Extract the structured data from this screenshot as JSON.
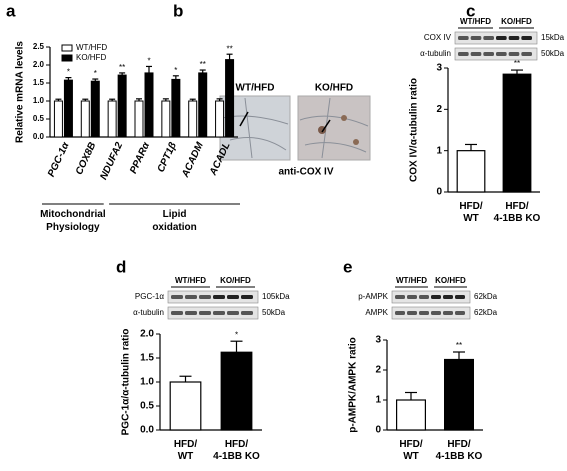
{
  "panel_letters": [
    "a",
    "b",
    "c",
    "d",
    "e"
  ],
  "micrograph": {
    "labels": [
      "WT/HFD",
      "KO/HFD"
    ],
    "caption": "anti-COX IV"
  },
  "chart_data": [
    {
      "type": "bar",
      "ylabel": "Relative mRNA levels",
      "categories": [
        "PGC-1α",
        "COX8B",
        "NDUFA2",
        "PPARα",
        "CPT1β",
        "ACADM",
        "ACADL"
      ],
      "series": [
        {
          "name": "WT/HFD",
          "color": "#ffffff",
          "values": [
            1.0,
            1.0,
            1.0,
            1.0,
            1.0,
            1.0,
            1.0
          ],
          "errors": [
            0.05,
            0.05,
            0.05,
            0.06,
            0.06,
            0.05,
            0.06
          ]
        },
        {
          "name": "KO/HFD",
          "color": "#000000",
          "values": [
            1.58,
            1.55,
            1.72,
            1.78,
            1.6,
            1.78,
            2.15
          ],
          "errors": [
            0.07,
            0.06,
            0.06,
            0.18,
            0.1,
            0.08,
            0.15
          ]
        }
      ],
      "significance": [
        "*",
        "*",
        "**",
        "*",
        "*",
        "**",
        "**"
      ],
      "group_labels": [
        "Mitochondrial Physiology",
        "Lipid oxidation"
      ],
      "ylim": [
        0,
        2.5
      ],
      "yticks": [
        {
          "value": 0,
          "label": "0.0"
        },
        {
          "value": 0.5,
          "label": "0.5"
        },
        {
          "value": 1,
          "label": "1.0"
        },
        {
          "value": 1.5,
          "label": "1.5"
        },
        {
          "value": 2,
          "label": "2.0"
        },
        {
          "value": 2.5,
          "label": "2.5"
        }
      ],
      "legend": "top-left"
    },
    {
      "type": "bar",
      "ylabel": "COX IV/α-tubulin ratio",
      "categories": [
        "HFD/WT",
        "HFD/4-1BB KO"
      ],
      "values": [
        1.0,
        2.85
      ],
      "errors": [
        0.15,
        0.1
      ],
      "colors": [
        "#ffffff",
        "#000000"
      ],
      "significance": [
        null,
        "**"
      ],
      "ylim": [
        0,
        3
      ],
      "yticks": [
        0,
        1,
        2,
        3
      ],
      "blot": {
        "groups": [
          "WT/HFD",
          "KO/HFD"
        ],
        "rows": [
          "COX IV",
          "α-tubulin"
        ],
        "sizes": [
          "15kDa",
          "50kDa"
        ]
      }
    },
    {
      "type": "bar",
      "ylabel": "PGC-1α/α-tubulin ratio",
      "categories": [
        "HFD/WT",
        "HFD/4-1BB KO"
      ],
      "values": [
        1.0,
        1.62
      ],
      "errors": [
        0.12,
        0.23
      ],
      "colors": [
        "#ffffff",
        "#000000"
      ],
      "significance": [
        null,
        "*"
      ],
      "ylim": [
        0,
        2
      ],
      "yticks": [
        {
          "value": 0,
          "label": "0.0"
        },
        {
          "value": 0.5,
          "label": "0.5"
        },
        {
          "value": 1,
          "label": "1.0"
        },
        {
          "value": 1.5,
          "label": "1.5"
        },
        {
          "value": 2,
          "label": "2.0"
        }
      ],
      "blot": {
        "groups": [
          "WT/HFD",
          "KO/HFD"
        ],
        "rows": [
          "PGC-1α",
          "α-tubulin"
        ],
        "sizes": [
          "105kDa",
          "50kDa"
        ]
      }
    },
    {
      "type": "bar",
      "ylabel": "p-AMPK/AMPK ratio",
      "categories": [
        "HFD/WT",
        "HFD/4-1BB KO"
      ],
      "values": [
        1.0,
        2.35
      ],
      "errors": [
        0.25,
        0.25
      ],
      "colors": [
        "#ffffff",
        "#000000"
      ],
      "significance": [
        null,
        "**"
      ],
      "ylim": [
        0,
        3
      ],
      "yticks": [
        0,
        1,
        2,
        3
      ],
      "blot": {
        "groups": [
          "WT/HFD",
          "KO/HFD"
        ],
        "rows": [
          "p-AMPK",
          "AMPK"
        ],
        "sizes": [
          "62kDa",
          "62kDa"
        ]
      }
    }
  ]
}
